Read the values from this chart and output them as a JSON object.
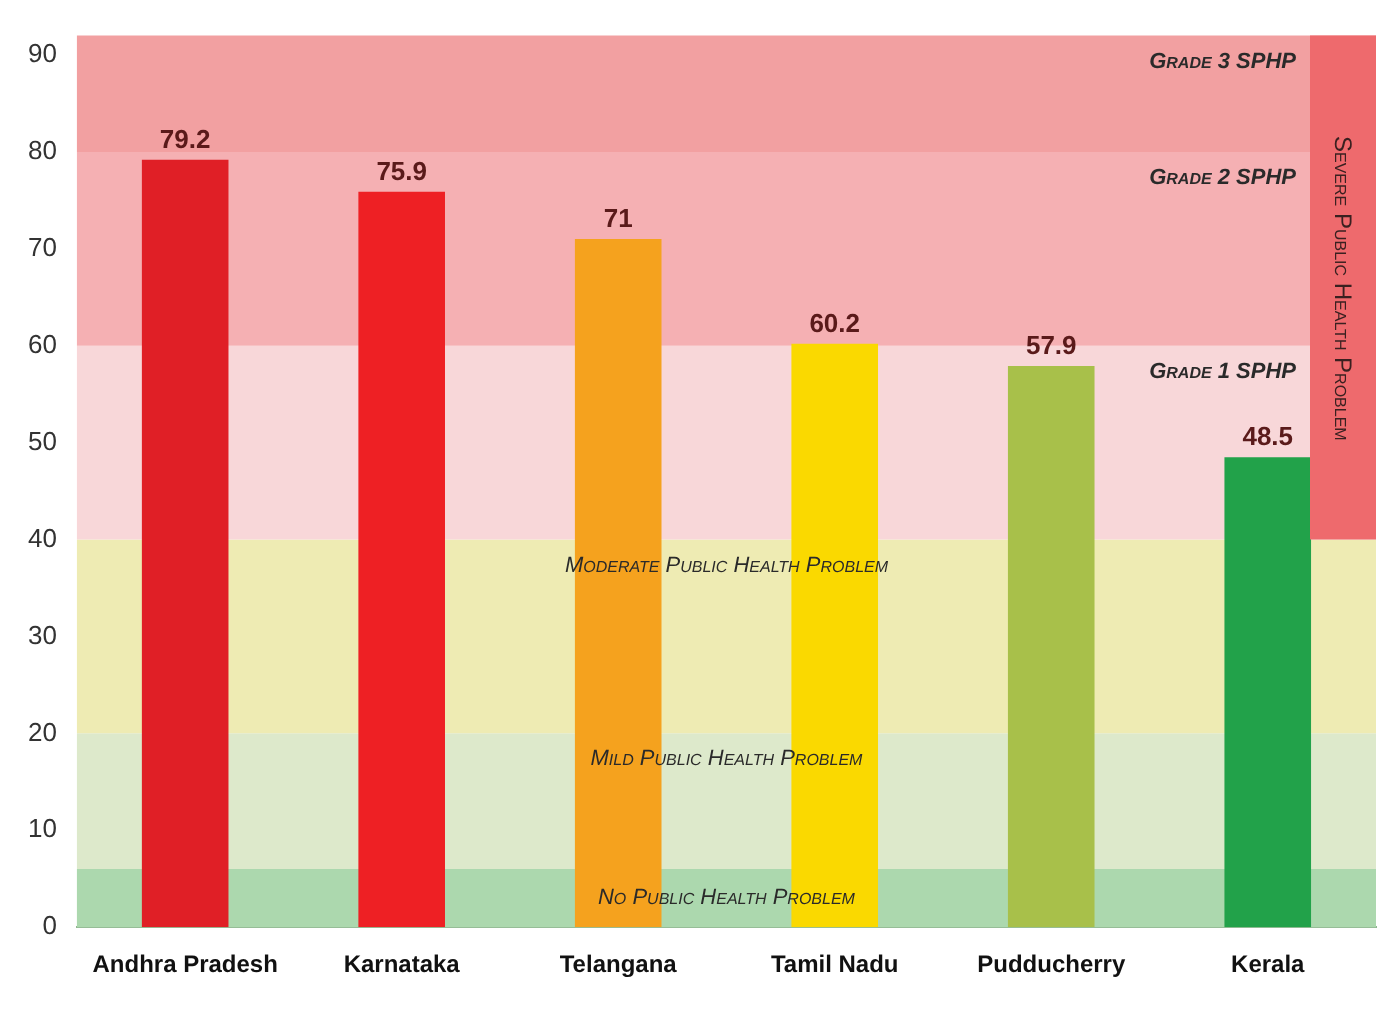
{
  "chart_data": {
    "type": "bar",
    "categories": [
      "Andhra Pradesh",
      "Karnataka",
      "Telangana",
      "Tamil Nadu",
      "Pudducherry",
      "Kerala"
    ],
    "values": [
      79.2,
      75.9,
      71,
      60.2,
      57.9,
      48.5
    ],
    "colors": [
      "#e01f26",
      "#ee2024",
      "#f5a21e",
      "#fad900",
      "#a8c04a",
      "#22a24a"
    ],
    "ylim": [
      0,
      92
    ],
    "yticks": [
      0,
      10,
      20,
      30,
      40,
      50,
      60,
      70,
      80,
      90
    ],
    "data_labels": true,
    "legend": false,
    "grid": false,
    "bands": [
      {
        "axis": "y",
        "from": 0,
        "to": 6,
        "label": "No Public Health Problem",
        "color": "#acd8ae"
      },
      {
        "axis": "y",
        "from": 6,
        "to": 20,
        "label": "Mild Public Health Problem",
        "color": "#dde9cb"
      },
      {
        "axis": "y",
        "from": 20,
        "to": 40,
        "label": "Moderate Public Health Problem",
        "color": "#eeebb3"
      },
      {
        "axis": "y",
        "from": 40,
        "to": 60,
        "label": "Grade 1 SPHP",
        "color": "#f8d7d9"
      },
      {
        "axis": "y",
        "from": 60,
        "to": 80,
        "label": "Grade 2 SPHP",
        "color": "#f5b0b3"
      },
      {
        "axis": "y",
        "from": 80,
        "to": 92,
        "label": "Grade 3 SPHP",
        "color": "#f2a0a1"
      },
      {
        "axis": "y",
        "from": 40,
        "to": 92,
        "label": "Severe Public Health Problem",
        "color": "#ee6a6d"
      }
    ]
  }
}
